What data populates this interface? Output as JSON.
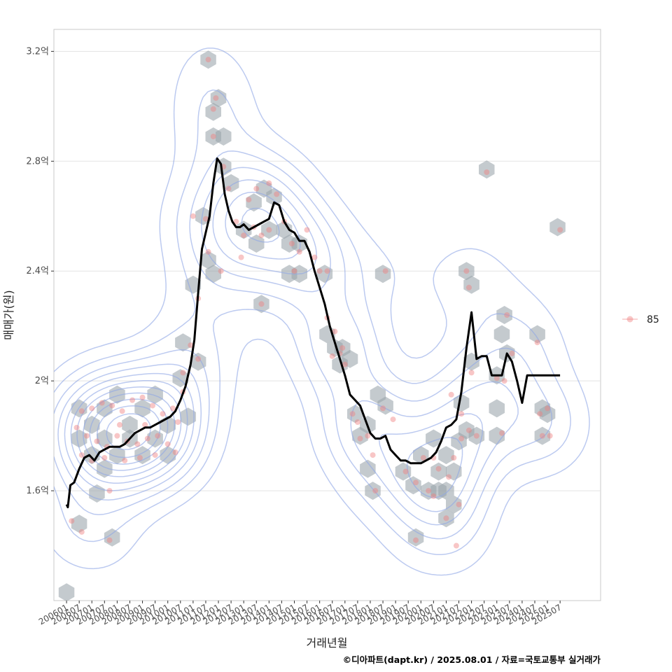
{
  "chart_data": {
    "type": "scatter",
    "title": "",
    "xlabel": "거래년월",
    "ylabel": "매매가(원)",
    "caption": "©디아파트(dapt.kr) / 2025.08.01 / 자료=국토교통부 실거래가",
    "ylim": [
      1.2,
      3.28
    ],
    "y_unit": "억",
    "y_ticks": [
      1.6,
      2.0,
      2.4,
      2.8,
      3.2
    ],
    "y_tick_labels": [
      "1.6억",
      "2억",
      "2.4억",
      "2.8억",
      "3.2억"
    ],
    "x_range": [
      2005.5,
      2027.1
    ],
    "x_ticks": [
      2006.0,
      2006.5,
      2007.0,
      2007.5,
      2008.0,
      2008.5,
      2009.0,
      2009.5,
      2010.0,
      2010.5,
      2011.0,
      2011.5,
      2012.0,
      2012.5,
      2013.0,
      2013.5,
      2014.0,
      2014.5,
      2015.0,
      2015.5,
      2016.0,
      2016.5,
      2017.0,
      2017.5,
      2018.0,
      2018.5,
      2019.0,
      2019.5,
      2020.0,
      2020.5,
      2021.0,
      2021.5,
      2022.0,
      2022.5,
      2023.0,
      2023.5,
      2024.0,
      2024.5,
      2025.0,
      2025.5
    ],
    "x_tick_labels": [
      "200601",
      "200607",
      "200701",
      "200707",
      "200801",
      "200807",
      "200901",
      "200907",
      "201001",
      "201007",
      "201101",
      "201107",
      "201201",
      "201207",
      "201301",
      "201307",
      "201401",
      "201407",
      "201501",
      "201507",
      "201601",
      "201607",
      "201701",
      "201707",
      "201801",
      "201807",
      "201901",
      "201907",
      "202001",
      "202007",
      "202101",
      "202107",
      "202201",
      "202207",
      "202301",
      "202307",
      "202401",
      "202407",
      "202501",
      "202507"
    ],
    "legend": {
      "entries": [
        "85"
      ],
      "position": "right"
    },
    "colors": {
      "points": "#f08080",
      "hex": "#9aa3ab",
      "contour": "#8fa6e6",
      "trend": "#000000",
      "grid": "#e3e3e3",
      "panel_border": "#c8c8c8"
    },
    "series": [
      {
        "name": "85",
        "points": [
          [
            2006.6,
            1.89
          ],
          [
            2007.0,
            1.9
          ],
          [
            2007.4,
            1.92
          ],
          [
            2007.8,
            1.91
          ],
          [
            2008.2,
            1.89
          ],
          [
            2008.6,
            1.93
          ],
          [
            2009.0,
            1.94
          ],
          [
            2009.4,
            1.91
          ],
          [
            2009.8,
            1.88
          ],
          [
            2010.2,
            1.9
          ],
          [
            2010.6,
            1.96
          ],
          [
            2006.8,
            1.8
          ],
          [
            2007.2,
            1.78
          ],
          [
            2007.6,
            1.76
          ],
          [
            2008.0,
            1.8
          ],
          [
            2008.4,
            1.78
          ],
          [
            2008.8,
            1.77
          ],
          [
            2009.2,
            1.79
          ],
          [
            2009.6,
            1.8
          ],
          [
            2010.0,
            1.77
          ],
          [
            2010.4,
            1.85
          ],
          [
            2006.6,
            1.73
          ],
          [
            2007.0,
            1.71
          ],
          [
            2007.5,
            1.72
          ],
          [
            2008.3,
            1.71
          ],
          [
            2008.9,
            1.72
          ],
          [
            2009.5,
            1.73
          ],
          [
            2010.3,
            1.74
          ],
          [
            2007.7,
            1.6
          ],
          [
            2006.6,
            1.45
          ],
          [
            2006.2,
            1.49
          ],
          [
            2007.7,
            1.42
          ],
          [
            2006.4,
            1.83
          ],
          [
            2008.1,
            1.84
          ],
          [
            2009.1,
            1.84
          ],
          [
            2010.6,
            2.03
          ],
          [
            2010.9,
            2.13
          ],
          [
            2011.2,
            2.3
          ],
          [
            2011.5,
            2.59
          ],
          [
            2011.2,
            2.08
          ],
          [
            2011.0,
            2.6
          ],
          [
            2011.6,
            2.47
          ],
          [
            2011.8,
            2.99
          ],
          [
            2011.9,
            3.03
          ],
          [
            2011.6,
            3.17
          ],
          [
            2011.8,
            2.89
          ],
          [
            2012.2,
            2.78
          ],
          [
            2012.4,
            2.7
          ],
          [
            2012.1,
            2.4
          ],
          [
            2012.7,
            2.58
          ],
          [
            2013.0,
            2.53
          ],
          [
            2012.9,
            2.45
          ],
          [
            2013.4,
            2.56
          ],
          [
            2013.7,
            2.53
          ],
          [
            2013.2,
            2.66
          ],
          [
            2013.5,
            2.7
          ],
          [
            2014.0,
            2.72
          ],
          [
            2014.3,
            2.68
          ],
          [
            2014.0,
            2.55
          ],
          [
            2014.6,
            2.58
          ],
          [
            2014.9,
            2.5
          ],
          [
            2015.2,
            2.47
          ],
          [
            2015.0,
            2.4
          ],
          [
            2015.5,
            2.55
          ],
          [
            2015.8,
            2.45
          ],
          [
            2016.0,
            2.4
          ],
          [
            2016.3,
            2.23
          ],
          [
            2016.6,
            2.18
          ],
          [
            2016.9,
            2.12
          ],
          [
            2016.5,
            2.09
          ],
          [
            2016.8,
            2.1
          ],
          [
            2017.0,
            2.06
          ],
          [
            2016.3,
            2.4
          ],
          [
            2017.3,
            1.88
          ],
          [
            2017.6,
            1.79
          ],
          [
            2017.9,
            1.8
          ],
          [
            2018.1,
            1.73
          ],
          [
            2018.5,
            1.9
          ],
          [
            2018.9,
            1.86
          ],
          [
            2018.2,
            1.6
          ],
          [
            2018.6,
            2.4
          ],
          [
            2017.5,
            1.85
          ],
          [
            2019.4,
            1.67
          ],
          [
            2019.8,
            1.63
          ],
          [
            2020.1,
            1.72
          ],
          [
            2020.3,
            1.6
          ],
          [
            2020.7,
            1.68
          ],
          [
            2020.5,
            1.58
          ],
          [
            2021.1,
            1.65
          ],
          [
            2021.3,
            1.72
          ],
          [
            2021.0,
            1.5
          ],
          [
            2021.6,
            1.79
          ],
          [
            2021.9,
            1.82
          ],
          [
            2021.6,
            1.88
          ],
          [
            2021.2,
            1.95
          ],
          [
            2019.8,
            1.42
          ],
          [
            2021.4,
            1.4
          ],
          [
            2021.8,
            2.4
          ],
          [
            2021.9,
            2.34
          ],
          [
            2022.0,
            2.03
          ],
          [
            2022.2,
            1.8
          ],
          [
            2022.6,
            2.76
          ],
          [
            2023.0,
            2.01
          ],
          [
            2023.3,
            2.0
          ],
          [
            2023.4,
            2.24
          ],
          [
            2023.6,
            2.1
          ],
          [
            2023.2,
            1.81
          ],
          [
            2024.6,
            2.14
          ],
          [
            2024.7,
            1.88
          ],
          [
            2024.8,
            1.8
          ],
          [
            2025.1,
            1.8
          ],
          [
            2025.0,
            1.9
          ],
          [
            2025.5,
            2.55
          ],
          [
            2013.7,
            2.28
          ],
          [
            2021.5,
            1.55
          ],
          [
            2020.5,
            1.72
          ]
        ]
      }
    ],
    "hexbins": [
      [
        2006.5,
        1.9
      ],
      [
        2007.0,
        1.84
      ],
      [
        2007.5,
        1.9
      ],
      [
        2008.0,
        1.95
      ],
      [
        2008.5,
        1.84
      ],
      [
        2009.0,
        1.9
      ],
      [
        2009.5,
        1.95
      ],
      [
        2010.0,
        1.84
      ],
      [
        2010.5,
        2.01
      ],
      [
        2006.5,
        1.79
      ],
      [
        2007.0,
        1.73
      ],
      [
        2007.5,
        1.79
      ],
      [
        2008.0,
        1.73
      ],
      [
        2008.5,
        1.79
      ],
      [
        2009.0,
        1.73
      ],
      [
        2009.5,
        1.79
      ],
      [
        2010.0,
        1.73
      ],
      [
        2007.5,
        1.68
      ],
      [
        2007.2,
        1.59
      ],
      [
        2006.5,
        1.48
      ],
      [
        2007.8,
        1.43
      ],
      [
        2006.0,
        1.23
      ],
      [
        2010.6,
        2.14
      ],
      [
        2011.2,
        2.07
      ],
      [
        2010.8,
        1.87
      ],
      [
        2011.0,
        2.35
      ],
      [
        2011.4,
        2.6
      ],
      [
        2011.6,
        2.44
      ],
      [
        2011.8,
        2.39
      ],
      [
        2011.6,
        3.17
      ],
      [
        2011.8,
        2.98
      ],
      [
        2012.0,
        3.03
      ],
      [
        2011.8,
        2.89
      ],
      [
        2012.2,
        2.89
      ],
      [
        2012.2,
        2.78
      ],
      [
        2012.5,
        2.72
      ],
      [
        2013.0,
        2.55
      ],
      [
        2013.5,
        2.5
      ],
      [
        2013.4,
        2.65
      ],
      [
        2013.8,
        2.7
      ],
      [
        2014.2,
        2.67
      ],
      [
        2014.0,
        2.55
      ],
      [
        2014.6,
        2.55
      ],
      [
        2014.8,
        2.5
      ],
      [
        2015.2,
        2.5
      ],
      [
        2014.8,
        2.39
      ],
      [
        2015.2,
        2.39
      ],
      [
        2013.7,
        2.28
      ],
      [
        2016.3,
        2.17
      ],
      [
        2016.6,
        2.12
      ],
      [
        2016.9,
        2.12
      ],
      [
        2016.8,
        2.06
      ],
      [
        2017.2,
        2.08
      ],
      [
        2016.2,
        2.39
      ],
      [
        2017.4,
        1.88
      ],
      [
        2017.6,
        1.8
      ],
      [
        2017.9,
        1.84
      ],
      [
        2018.3,
        1.95
      ],
      [
        2018.6,
        1.91
      ],
      [
        2018.5,
        2.39
      ],
      [
        2017.9,
        1.68
      ],
      [
        2018.1,
        1.6
      ],
      [
        2019.3,
        1.67
      ],
      [
        2019.7,
        1.62
      ],
      [
        2020.0,
        1.73
      ],
      [
        2020.3,
        1.6
      ],
      [
        2020.7,
        1.67
      ],
      [
        2020.5,
        1.79
      ],
      [
        2021.0,
        1.73
      ],
      [
        2021.3,
        1.67
      ],
      [
        2021.0,
        1.6
      ],
      [
        2021.3,
        1.55
      ],
      [
        2021.0,
        1.5
      ],
      [
        2021.5,
        1.78
      ],
      [
        2021.8,
        1.82
      ],
      [
        2021.6,
        1.92
      ],
      [
        2019.8,
        1.43
      ],
      [
        2021.8,
        2.4
      ],
      [
        2022.0,
        2.35
      ],
      [
        2022.0,
        2.07
      ],
      [
        2022.2,
        1.8
      ],
      [
        2022.6,
        2.77
      ],
      [
        2023.0,
        2.02
      ],
      [
        2023.3,
        2.24
      ],
      [
        2023.2,
        2.17
      ],
      [
        2023.4,
        2.1
      ],
      [
        2023.0,
        1.9
      ],
      [
        2023.0,
        1.8
      ],
      [
        2024.6,
        2.17
      ],
      [
        2024.8,
        1.9
      ],
      [
        2024.8,
        1.8
      ],
      [
        2025.4,
        2.56
      ],
      [
        2025.0,
        1.88
      ],
      [
        2020.7,
        1.6
      ]
    ],
    "trend": {
      "x": [
        2006.0,
        2006.05,
        2006.15,
        2006.3,
        2006.5,
        2006.7,
        2006.9,
        2007.1,
        2007.3,
        2007.5,
        2007.7,
        2007.9,
        2008.1,
        2008.3,
        2008.5,
        2008.7,
        2008.9,
        2009.1,
        2009.3,
        2009.5,
        2009.7,
        2009.9,
        2010.1,
        2010.3,
        2010.5,
        2010.7,
        2010.9,
        2011.05,
        2011.2,
        2011.35,
        2011.5,
        2011.65,
        2011.8,
        2011.95,
        2012.1,
        2012.25,
        2012.4,
        2012.55,
        2012.7,
        2012.85,
        2013.0,
        2013.2,
        2013.4,
        2013.6,
        2013.8,
        2014.0,
        2014.2,
        2014.4,
        2014.6,
        2014.8,
        2015.0,
        2015.2,
        2015.4,
        2015.6,
        2015.8,
        2016.0,
        2016.2,
        2016.4,
        2016.6,
        2016.8,
        2017.0,
        2017.2,
        2017.4,
        2017.6,
        2017.8,
        2018.0,
        2018.2,
        2018.4,
        2018.6,
        2018.8,
        2019.0,
        2019.2,
        2019.4,
        2019.6,
        2019.8,
        2020.0,
        2020.2,
        2020.4,
        2020.6,
        2020.8,
        2021.0,
        2021.2,
        2021.4,
        2021.6,
        2021.8,
        2022.0,
        2022.2,
        2022.4,
        2022.6,
        2022.8,
        2023.0,
        2023.2,
        2023.4,
        2023.6,
        2023.8,
        2024.0,
        2024.2,
        2024.4,
        2024.6,
        2024.8,
        2025.0,
        2025.2,
        2025.5
      ],
      "y": [
        1.55,
        1.54,
        1.62,
        1.63,
        1.68,
        1.72,
        1.73,
        1.71,
        1.74,
        1.75,
        1.76,
        1.76,
        1.76,
        1.77,
        1.79,
        1.81,
        1.82,
        1.83,
        1.83,
        1.84,
        1.85,
        1.86,
        1.87,
        1.89,
        1.93,
        1.98,
        2.06,
        2.15,
        2.32,
        2.48,
        2.54,
        2.6,
        2.72,
        2.81,
        2.79,
        2.68,
        2.62,
        2.58,
        2.56,
        2.56,
        2.57,
        2.55,
        2.56,
        2.57,
        2.58,
        2.59,
        2.65,
        2.64,
        2.58,
        2.55,
        2.54,
        2.51,
        2.51,
        2.47,
        2.4,
        2.34,
        2.28,
        2.2,
        2.14,
        2.08,
        2.02,
        1.95,
        1.93,
        1.91,
        1.86,
        1.81,
        1.79,
        1.79,
        1.8,
        1.75,
        1.73,
        1.71,
        1.71,
        1.7,
        1.7,
        1.7,
        1.71,
        1.72,
        1.74,
        1.78,
        1.83,
        1.84,
        1.86,
        1.96,
        2.12,
        2.25,
        2.08,
        2.09,
        2.09,
        2.02,
        2.02,
        2.02,
        2.1,
        2.07,
        2.0,
        1.92,
        2.02,
        2.02,
        2.02,
        2.02,
        2.02,
        2.02,
        2.02
      ]
    }
  }
}
